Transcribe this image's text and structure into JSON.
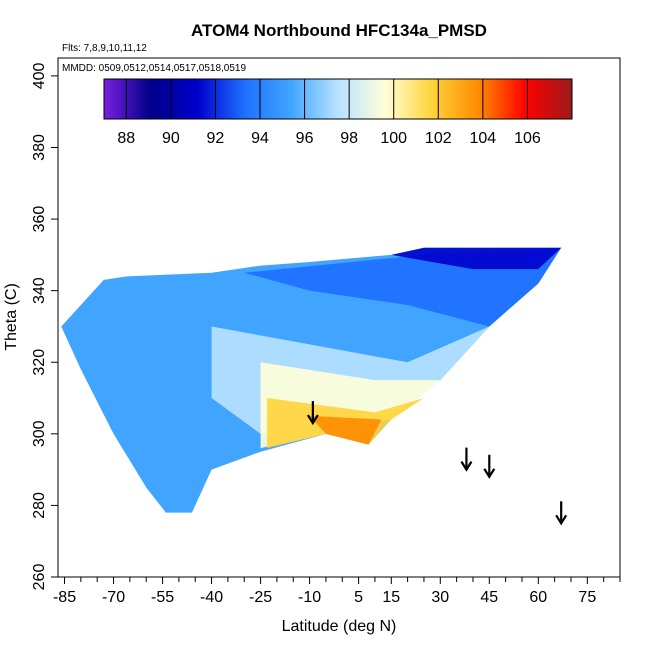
{
  "chart_data": {
    "type": "heatmap",
    "title": "ATOM4 Northbound HFC134a_PMSD",
    "subtitle_flights": "Flts: 7,8,9,10,11,12",
    "subtitle_dates": "MMDD: 0509,0512,0514,0517,0518,0519",
    "xlabel": "Latitude (deg N)",
    "ylabel": "Theta (C)",
    "xlim": [
      -87,
      85
    ],
    "ylim": [
      260,
      405
    ],
    "x_ticks": [
      -85,
      -70,
      -55,
      -40,
      -25,
      -10,
      5,
      15,
      30,
      45,
      60,
      75
    ],
    "x_tick_labels": [
      "-85",
      "-70",
      "-55",
      "-40",
      "-25",
      "-10",
      "5",
      "15",
      "30",
      "45",
      "60",
      "75"
    ],
    "y_ticks": [
      260,
      280,
      300,
      320,
      340,
      360,
      380,
      400
    ],
    "y_tick_labels": [
      "260",
      "280",
      "300",
      "320",
      "340",
      "360",
      "380",
      "400"
    ],
    "colorbar": {
      "range": [
        87,
        108
      ],
      "ticks": [
        88,
        90,
        92,
        94,
        96,
        98,
        100,
        102,
        104,
        106
      ],
      "tick_labels": [
        "88",
        "90",
        "92",
        "94",
        "96",
        "98",
        "100",
        "102",
        "104",
        "106"
      ],
      "colors": [
        "#7b1fe0",
        "#00008b",
        "#0000cd",
        "#1e6fff",
        "#41a5ff",
        "#b8e2ff",
        "#ffffd9",
        "#ffd33a",
        "#ff8c00",
        "#ff0000",
        "#9b1b1b"
      ]
    },
    "field_boundary": {
      "outline": [
        [
          -86,
          330
        ],
        [
          -73,
          343
        ],
        [
          -66,
          344
        ],
        [
          -40,
          345
        ],
        [
          -25,
          347
        ],
        [
          -10,
          348
        ],
        [
          15,
          350
        ],
        [
          25,
          352
        ],
        [
          67,
          352
        ],
        [
          60,
          342
        ],
        [
          45,
          330
        ],
        [
          30,
          315
        ],
        [
          15,
          304
        ],
        [
          8,
          297
        ],
        [
          5,
          299
        ],
        [
          -5,
          300
        ],
        [
          -25,
          295
        ],
        [
          -40,
          290
        ],
        [
          -46,
          278
        ],
        [
          -54,
          278
        ],
        [
          -60,
          285
        ],
        [
          -70,
          300
        ],
        [
          -80,
          318
        ]
      ],
      "value_grid_note": "estimated gradient: blue 93-95 near south, pale 97-99 central, yellow-orange 101-103 low theta north of -25"
    },
    "arrows": [
      {
        "lat": -9,
        "theta": 303
      },
      {
        "lat": 38,
        "theta": 290
      },
      {
        "lat": 45,
        "theta": 288
      },
      {
        "lat": 67,
        "theta": 275
      }
    ],
    "grid": false,
    "legend_position": "top"
  }
}
